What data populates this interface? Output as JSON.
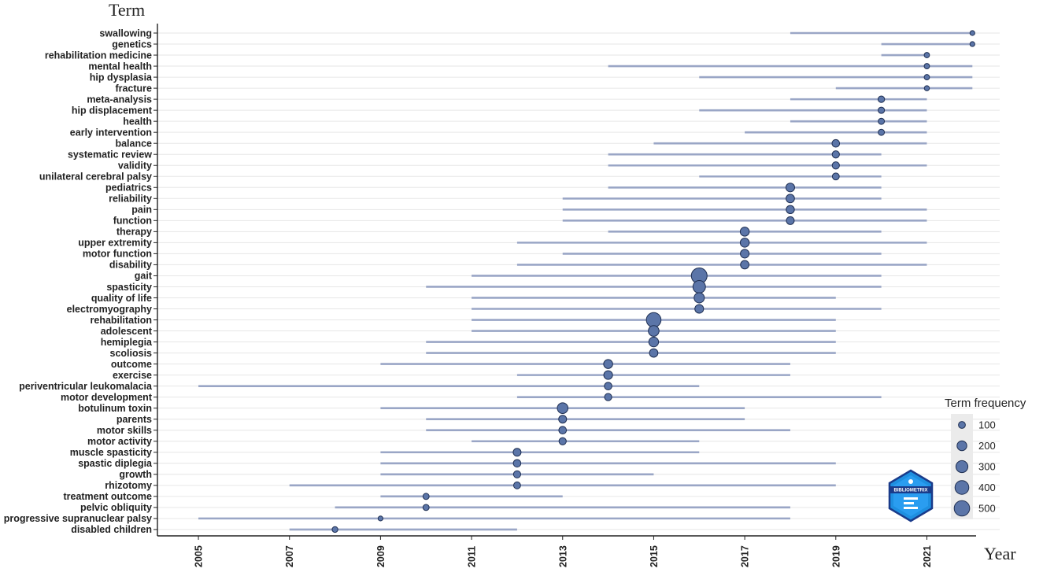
{
  "chart_data": {
    "type": "scatter",
    "title": "",
    "xlabel": "Year",
    "ylabel": "Term",
    "xlim": [
      2004.1,
      2022.6
    ],
    "x_ticks": [
      "2005",
      "2007",
      "2009",
      "2011",
      "2013",
      "2015",
      "2017",
      "2019",
      "2021"
    ],
    "legend": {
      "title": "Term frequency",
      "placement": "right",
      "sizes": [
        100,
        200,
        300,
        400,
        500
      ],
      "labels": [
        "100",
        "200",
        "300",
        "400",
        "500"
      ]
    },
    "colors": {
      "point": "#5b75a8",
      "point_stroke": "#1f2f52",
      "line": "#9aa6c6",
      "grid": "#e6e6e6"
    },
    "logo": {
      "text": "BIBLIOMETRIX"
    },
    "terms": [
      {
        "term": "swallowing",
        "start": 2018,
        "end": 2022,
        "peak": 2022,
        "freq": 50
      },
      {
        "term": "genetics",
        "start": 2020,
        "end": 2022,
        "peak": 2022,
        "freq": 50
      },
      {
        "term": "rehabilitation medicine",
        "start": 2020,
        "end": 2021,
        "peak": 2021,
        "freq": 60
      },
      {
        "term": "mental health",
        "start": 2014,
        "end": 2022,
        "peak": 2021,
        "freq": 60
      },
      {
        "term": "hip dysplasia",
        "start": 2016,
        "end": 2022,
        "peak": 2021,
        "freq": 60
      },
      {
        "term": "fracture",
        "start": 2019,
        "end": 2022,
        "peak": 2021,
        "freq": 55
      },
      {
        "term": "meta-analysis",
        "start": 2018,
        "end": 2021,
        "peak": 2020,
        "freq": 90
      },
      {
        "term": "hip displacement",
        "start": 2016,
        "end": 2021,
        "peak": 2020,
        "freq": 85
      },
      {
        "term": "health",
        "start": 2018,
        "end": 2021,
        "peak": 2020,
        "freq": 80
      },
      {
        "term": "early intervention",
        "start": 2017,
        "end": 2021,
        "peak": 2020,
        "freq": 80
      },
      {
        "term": "balance",
        "start": 2015,
        "end": 2021,
        "peak": 2019,
        "freq": 120
      },
      {
        "term": "systematic review",
        "start": 2014,
        "end": 2020,
        "peak": 2019,
        "freq": 110
      },
      {
        "term": "validity",
        "start": 2014,
        "end": 2021,
        "peak": 2019,
        "freq": 110
      },
      {
        "term": "unilateral cerebral palsy",
        "start": 2016,
        "end": 2020,
        "peak": 2019,
        "freq": 100
      },
      {
        "term": "pediatrics",
        "start": 2014,
        "end": 2020,
        "peak": 2018,
        "freq": 160
      },
      {
        "term": "reliability",
        "start": 2013,
        "end": 2020,
        "peak": 2018,
        "freq": 150
      },
      {
        "term": "pain",
        "start": 2013,
        "end": 2021,
        "peak": 2018,
        "freq": 140
      },
      {
        "term": "function",
        "start": 2013,
        "end": 2021,
        "peak": 2018,
        "freq": 130
      },
      {
        "term": "therapy",
        "start": 2014,
        "end": 2020,
        "peak": 2017,
        "freq": 170
      },
      {
        "term": "upper extremity",
        "start": 2012,
        "end": 2021,
        "peak": 2017,
        "freq": 170
      },
      {
        "term": "motor function",
        "start": 2013,
        "end": 2020,
        "peak": 2017,
        "freq": 160
      },
      {
        "term": "disability",
        "start": 2012,
        "end": 2021,
        "peak": 2017,
        "freq": 150
      },
      {
        "term": "gait",
        "start": 2011,
        "end": 2020,
        "peak": 2016,
        "freq": 520
      },
      {
        "term": "spasticity",
        "start": 2010,
        "end": 2020,
        "peak": 2016,
        "freq": 330
      },
      {
        "term": "quality of life",
        "start": 2011,
        "end": 2019,
        "peak": 2016,
        "freq": 220
      },
      {
        "term": "electromyography",
        "start": 2011,
        "end": 2020,
        "peak": 2016,
        "freq": 160
      },
      {
        "term": "rehabilitation",
        "start": 2011,
        "end": 2019,
        "peak": 2015,
        "freq": 450
      },
      {
        "term": "adolescent",
        "start": 2011,
        "end": 2019,
        "peak": 2015,
        "freq": 240
      },
      {
        "term": "hemiplegia",
        "start": 2010,
        "end": 2019,
        "peak": 2015,
        "freq": 200
      },
      {
        "term": "scoliosis",
        "start": 2010,
        "end": 2019,
        "peak": 2015,
        "freq": 150
      },
      {
        "term": "outcome",
        "start": 2009,
        "end": 2018,
        "peak": 2014,
        "freq": 170
      },
      {
        "term": "exercise",
        "start": 2012,
        "end": 2018,
        "peak": 2014,
        "freq": 160
      },
      {
        "term": "periventricular leukomalacia",
        "start": 2005,
        "end": 2016,
        "peak": 2014,
        "freq": 120
      },
      {
        "term": "motor development",
        "start": 2012,
        "end": 2020,
        "peak": 2014,
        "freq": 110
      },
      {
        "term": "botulinum toxin",
        "start": 2009,
        "end": 2017,
        "peak": 2013,
        "freq": 240
      },
      {
        "term": "parents",
        "start": 2010,
        "end": 2017,
        "peak": 2013,
        "freq": 130
      },
      {
        "term": "motor skills",
        "start": 2010,
        "end": 2018,
        "peak": 2013,
        "freq": 120
      },
      {
        "term": "motor activity",
        "start": 2011,
        "end": 2016,
        "peak": 2013,
        "freq": 110
      },
      {
        "term": "muscle spasticity",
        "start": 2009,
        "end": 2016,
        "peak": 2012,
        "freq": 130
      },
      {
        "term": "spastic diplegia",
        "start": 2009,
        "end": 2019,
        "peak": 2012,
        "freq": 120
      },
      {
        "term": "growth",
        "start": 2009,
        "end": 2015,
        "peak": 2012,
        "freq": 110
      },
      {
        "term": "rhizotomy",
        "start": 2007,
        "end": 2019,
        "peak": 2012,
        "freq": 100
      },
      {
        "term": "treatment outcome",
        "start": 2009,
        "end": 2013,
        "peak": 2010,
        "freq": 80
      },
      {
        "term": "pelvic obliquity",
        "start": 2008,
        "end": 2018,
        "peak": 2010,
        "freq": 80
      },
      {
        "term": "progressive supranuclear palsy",
        "start": 2005,
        "end": 2018,
        "peak": 2009,
        "freq": 50
      },
      {
        "term": "disabled children",
        "start": 2007,
        "end": 2012,
        "peak": 2008,
        "freq": 70
      }
    ]
  }
}
